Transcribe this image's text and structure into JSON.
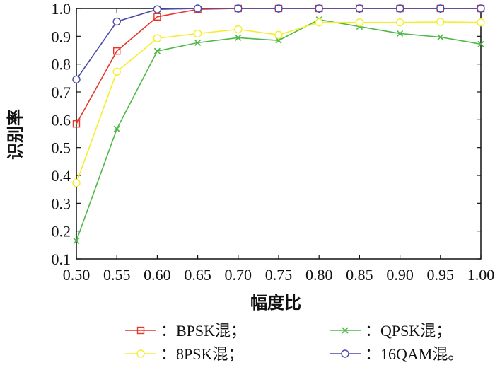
{
  "chart_data": {
    "type": "line",
    "title": "",
    "xlabel": "幅度比",
    "ylabel": "识别率",
    "x": [
      0.5,
      0.55,
      0.6,
      0.65,
      0.7,
      0.75,
      0.8,
      0.85,
      0.9,
      0.95,
      1.0
    ],
    "x_tick_labels": [
      "0.50",
      "0.55",
      "0.60",
      "0.65",
      "0.70",
      "0.75",
      "0.80",
      "0.85",
      "0.90",
      "0.95",
      "1.00"
    ],
    "y_tick_values": [
      0.1,
      0.2,
      0.3,
      0.4,
      0.5,
      0.6,
      0.7,
      0.8,
      0.9,
      1.0
    ],
    "y_tick_labels": [
      "0.1",
      "0.2",
      "0.3",
      "0.4",
      "0.5",
      "0.6",
      "0.7",
      "0.8",
      "0.9",
      "1.0"
    ],
    "xlim": [
      0.5,
      1.0
    ],
    "ylim": [
      0.1,
      1.0
    ],
    "grid": false,
    "legend_position": "bottom",
    "series": [
      {
        "name": "：BPSK混；",
        "color": "#e8372a",
        "marker": "square",
        "values": [
          0.585,
          0.847,
          0.97,
          0.997,
          1.0,
          1.0,
          1.0,
          1.0,
          1.0,
          1.0,
          1.0
        ]
      },
      {
        "name": "：QPSK混；",
        "color": "#4fb848",
        "marker": "x",
        "values": [
          0.165,
          0.567,
          0.847,
          0.877,
          0.895,
          0.885,
          0.96,
          0.935,
          0.91,
          0.897,
          0.872
        ]
      },
      {
        "name": "：8PSK混；",
        "color": "#f5ee2a",
        "marker": "circle",
        "values": [
          0.373,
          0.773,
          0.893,
          0.91,
          0.925,
          0.905,
          0.95,
          0.95,
          0.95,
          0.952,
          0.95
        ]
      },
      {
        "name": "：16QAM混。",
        "color": "#4a4aa8",
        "marker": "circle",
        "values": [
          0.745,
          0.953,
          0.997,
          1.0,
          1.0,
          1.0,
          1.0,
          1.0,
          1.0,
          1.0,
          1.0
        ]
      }
    ]
  }
}
